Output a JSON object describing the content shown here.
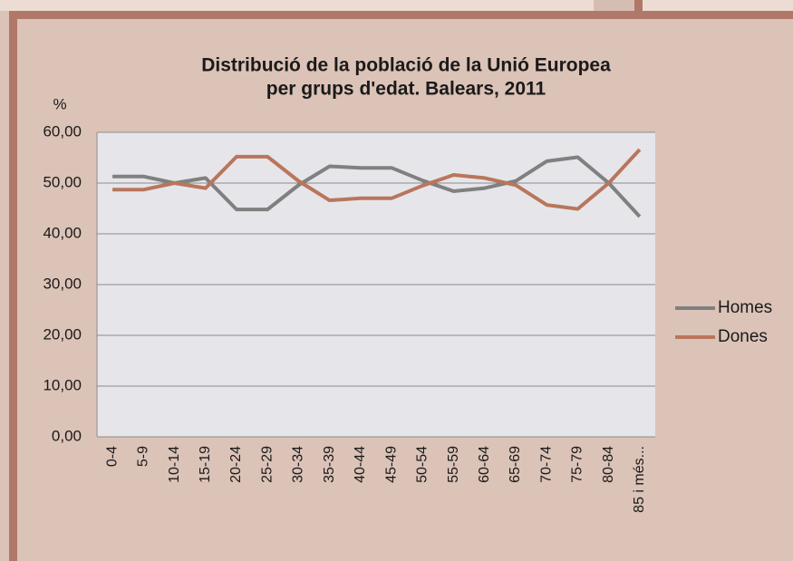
{
  "chart_data": {
    "type": "line",
    "title": [
      "Distribució de la població de la Unió Europea",
      "per grups d'edat. Balears, 2011"
    ],
    "y_label": "%",
    "categories": [
      "0-4",
      "5-9",
      "10-14",
      "15-19",
      "20-24",
      "25-29",
      "30-34",
      "35-39",
      "40-44",
      "45-49",
      "50-54",
      "55-59",
      "60-64",
      "65-69",
      "70-74",
      "75-79",
      "80-84",
      "85 i més..."
    ],
    "series": [
      {
        "name": "Homes",
        "color": "#808080",
        "values": [
          51.3,
          51.3,
          50.0,
          51.0,
          44.8,
          44.8,
          49.6,
          53.3,
          53.0,
          53.0,
          50.5,
          48.4,
          49.0,
          50.4,
          54.3,
          55.1,
          50.0,
          43.4
        ]
      },
      {
        "name": "Dones",
        "color": "#b9765c",
        "values": [
          48.7,
          48.7,
          50.0,
          49.0,
          55.2,
          55.2,
          50.4,
          46.6,
          47.0,
          47.0,
          49.5,
          51.6,
          51.0,
          49.6,
          45.7,
          44.9,
          50.0,
          56.6
        ]
      }
    ],
    "ylim": [
      0,
      60
    ],
    "yticks": [
      {
        "value": 0,
        "label": "0,00"
      },
      {
        "value": 10,
        "label": "10,00"
      },
      {
        "value": 20,
        "label": "20,00"
      },
      {
        "value": 30,
        "label": "30,00"
      },
      {
        "value": 40,
        "label": "40,00"
      },
      {
        "value": 50,
        "label": "50,00"
      },
      {
        "value": 60,
        "label": "60,00"
      }
    ],
    "grid": true,
    "legend": "right"
  }
}
